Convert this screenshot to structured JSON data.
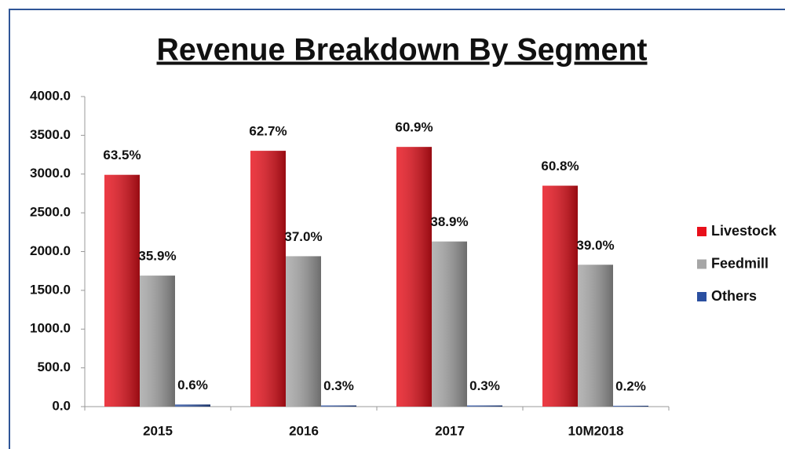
{
  "chart_data": {
    "type": "bar",
    "title": "Revenue Breakdown By Segment",
    "categories": [
      "2015",
      "2016",
      "2017",
      "10M2018"
    ],
    "series": [
      {
        "name": "Livestock",
        "color": "#e8101b",
        "values": [
          2990,
          3300,
          3350,
          2850
        ],
        "data_labels": [
          "63.5%",
          "62.7%",
          "60.9%",
          "60.8%"
        ]
      },
      {
        "name": "Feedmill",
        "color": "#a6a6a6",
        "values": [
          1690,
          1940,
          2130,
          1830
        ],
        "data_labels": [
          "35.9%",
          "37.0%",
          "38.9%",
          "39.0%"
        ]
      },
      {
        "name": "Others",
        "color": "#2a4fa0",
        "values": [
          27,
          15,
          15,
          11
        ],
        "data_labels": [
          "0.6%",
          "0.3%",
          "0.3%",
          "0.2%"
        ]
      }
    ],
    "ylim": [
      0,
      4000
    ],
    "yticks": [
      {
        "value": 0,
        "label": "0.0"
      },
      {
        "value": 500,
        "label": "500.0"
      },
      {
        "value": 1000,
        "label": "1000.0"
      },
      {
        "value": 1500,
        "label": "1500.0"
      },
      {
        "value": 2000,
        "label": "2000.0"
      },
      {
        "value": 2500,
        "label": "2500.0"
      },
      {
        "value": 3000,
        "label": "3000.0"
      },
      {
        "value": 3500,
        "label": "3500.0"
      },
      {
        "value": 4000,
        "label": "4000.0"
      }
    ],
    "grid": false,
    "legend": "right"
  }
}
